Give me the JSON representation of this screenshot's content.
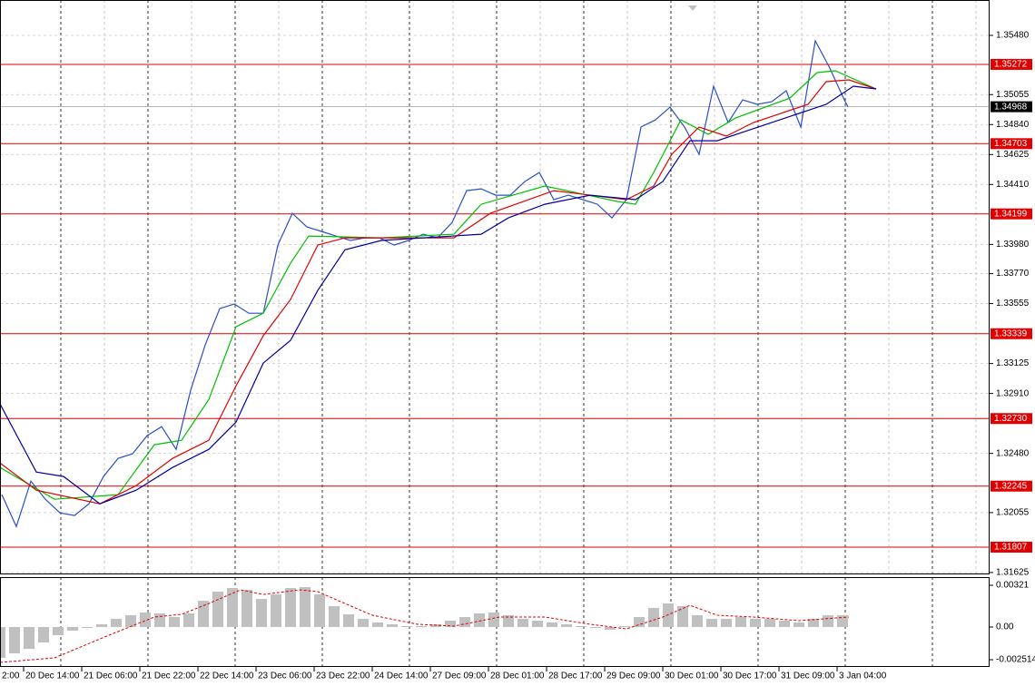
{
  "chart_data": [
    {
      "type": "line",
      "xlim": [
        5.5,
        278
      ],
      "ylim": [
        1.31618,
        1.35734
      ],
      "grid": true,
      "xticks": [
        {
          "value": -4,
          "label": "2:00"
        },
        {
          "value": 12,
          "label": "20 Dec 14:00"
        },
        {
          "value": 28,
          "label": "21 Dec 06:00"
        },
        {
          "value": 44,
          "label": "21 Dec 22:00"
        },
        {
          "value": 60,
          "label": "22 Dec 14:00"
        },
        {
          "value": 76,
          "label": "23 Dec 06:00"
        },
        {
          "value": 92,
          "label": "23 Dec 22:00"
        },
        {
          "value": 108,
          "label": "24 Dec 14:00"
        },
        {
          "value": 124,
          "label": "27 Dec 09:00"
        },
        {
          "value": 140,
          "label": "28 Dec 01:00"
        },
        {
          "value": 156,
          "label": "28 Dec 17:00"
        },
        {
          "value": 172,
          "label": "29 Dec 09:00"
        },
        {
          "value": 188,
          "label": "30 Dec 01:00"
        },
        {
          "value": 204,
          "label": "30 Dec 17:00"
        },
        {
          "value": 220,
          "label": "31 Dec 09:00"
        },
        {
          "value": 236,
          "label": "3 Jan 04:00"
        }
      ],
      "yticks": [
        {
          "value": 1.3548,
          "label": "1.35480"
        },
        {
          "value": 1.35055,
          "label": "1.35055"
        },
        {
          "value": 1.3484,
          "label": "1.34840"
        },
        {
          "value": 1.34625,
          "label": "1.34625"
        },
        {
          "value": 1.3441,
          "label": "1.34410"
        },
        {
          "value": 1.3398,
          "label": "1.33980"
        },
        {
          "value": 1.3377,
          "label": "1.33770"
        },
        1.33555,
        {
          "value": 1.33125,
          "label": "1.33125"
        },
        {
          "value": 1.3291,
          "label": "1.32910"
        },
        {
          "value": 1.3248,
          "label": "1.32480"
        },
        {
          "value": 1.32055,
          "label": "1.32055"
        },
        {
          "value": 1.31625,
          "label": "1.31625"
        }
      ],
      "levels": {
        "color": "#e00000",
        "values": [
          1.35272,
          1.34703,
          1.34199,
          1.33339,
          {
            "value": 1.3273,
            "label": "1.32730"
          },
          1.32245,
          1.31807
        ]
      },
      "current_price": 1.34968,
      "series": [
        {
          "color": "#2a4fc8",
          "x": [
            6,
            10,
            14,
            18,
            22,
            26,
            30,
            34,
            38,
            42,
            46,
            50,
            54,
            58,
            62,
            66,
            70,
            74,
            78,
            82,
            86,
            90,
            94,
            98,
            102,
            106,
            110,
            114,
            118,
            122,
            126,
            130,
            134,
            138,
            142,
            146,
            150,
            154,
            158,
            162,
            166,
            170,
            174,
            178,
            182,
            186,
            190,
            194,
            198,
            202,
            206,
            210,
            214,
            218,
            222,
            226,
            230,
            234,
            238,
            239
          ],
          "values": [
            1.32184,
            1.31955,
            1.32281,
            1.32151,
            1.32053,
            1.32034,
            1.32118,
            1.32314,
            1.32444,
            1.32477,
            1.32607,
            1.32672,
            1.32509,
            1.32933,
            1.33258,
            1.33519,
            1.33552,
            1.33486,
            1.33486,
            1.33975,
            1.34203,
            1.34105,
            1.34073,
            1.3404,
            1.34008,
            1.34027,
            1.34027,
            1.33975,
            1.34008,
            1.34053,
            1.34027,
            1.34138,
            1.34366,
            1.34379,
            1.34333,
            1.34333,
            1.34431,
            1.34496,
            1.34301,
            1.34333,
            1.34301,
            1.34268,
            1.3417,
            1.34301,
            1.34822,
            1.34874,
            1.34965,
            1.34822,
            1.34627,
            1.35115,
            1.34855,
            1.35017,
            1.34985,
            1.35004,
            1.35083,
            1.34822,
            1.35441,
            1.35245,
            1.35017,
            1.34968
          ]
        },
        {
          "color": "#00c000",
          "x": [
            5.5,
            20.5,
            38,
            48,
            55.5,
            63,
            70.5,
            78,
            85.5,
            90.5,
            110.5,
            130.5,
            138,
            155.5,
            175.5,
            180.5,
            185.5,
            193,
            200.5,
            208,
            223,
            230.5,
            235.5,
            246.75
          ],
          "values": [
            1.32379,
            1.32151,
            1.32183,
            1.32542,
            1.32574,
            1.32867,
            1.33389,
            1.33486,
            1.33845,
            1.3404,
            1.34027,
            1.34053,
            1.34268,
            1.34399,
            1.34288,
            1.34268,
            1.34496,
            1.34874,
            1.3477,
            1.34887,
            1.3503,
            1.35213,
            1.35226,
            1.35096
          ]
        },
        {
          "color": "#e00000",
          "x": [
            5.5,
            15.5,
            33,
            43,
            53,
            63,
            70.5,
            78,
            85.5,
            93,
            100.5,
            130.5,
            140.5,
            158,
            178,
            185.5,
            190.5,
            198,
            205.5,
            213,
            228,
            233,
            239.25,
            246.75
          ],
          "values": [
            1.32411,
            1.32216,
            1.32118,
            1.32249,
            1.32444,
            1.32574,
            1.32965,
            1.33324,
            1.33584,
            1.33975,
            1.34027,
            1.34027,
            1.34203,
            1.34366,
            1.34301,
            1.34399,
            1.34627,
            1.34822,
            1.34757,
            1.34855,
            1.34985,
            1.35148,
            1.35161,
            1.35096
          ]
        },
        {
          "color": "#0000a0",
          "x": [
            5.5,
            15.5,
            23,
            33,
            43,
            53,
            63,
            70.5,
            78,
            85.5,
            93,
            100.5,
            110.5,
            138,
            145.5,
            155.5,
            168,
            180.5,
            188,
            195.5,
            203,
            210.5,
            225.5,
            233,
            240.5,
            246.75
          ],
          "values": [
            1.32835,
            1.32346,
            1.32314,
            1.32118,
            1.32216,
            1.32379,
            1.32509,
            1.32705,
            1.33128,
            1.33291,
            1.33649,
            1.33942,
            1.34008,
            1.34053,
            1.3417,
            1.34268,
            1.34333,
            1.34301,
            1.34431,
            1.34724,
            1.34724,
            1.34789,
            1.3492,
            1.34985,
            1.35115,
            1.35096
          ]
        }
      ]
    },
    {
      "type": "histogram",
      "xlim": [
        5.5,
        278
      ],
      "ylim": [
        -0.00307,
        0.00384
      ],
      "yticks": [
        0.00321,
        {
          "value": 0,
          "label": "0.00"
        },
        -0.002514
      ],
      "series": [
        {
          "color": "#c0c0c0",
          "x": [
            5.5,
            9.5,
            13.5,
            17.5,
            21.5,
            25.5,
            29.5,
            33.5,
            37.5,
            41.5,
            45.5,
            49.5,
            53.5,
            57.5,
            61.5,
            65.5,
            69.5,
            73.5,
            77.5,
            81.5,
            85.5,
            89.5,
            93.5,
            97.5,
            101.5,
            105.5,
            109.5,
            113.5,
            117.5,
            121.5,
            125.5,
            129.5,
            133.5,
            137.5,
            141.5,
            145.5,
            149.5,
            153.5,
            157.5,
            161.5,
            165.5,
            169.5,
            173.5,
            177.5,
            181.5,
            185.5,
            189.5,
            193.5,
            197.5,
            201.5,
            205.5,
            209.5,
            213.5,
            217.5,
            221.5,
            225.5,
            229.5,
            233.5,
            237.5
          ],
          "values": [
            -0.00237,
            -0.00202,
            -0.00168,
            -0.00119,
            -0.00063,
            -0.00028,
            -7e-05,
            0.00021,
            0.00063,
            0.00091,
            0.00112,
            0.00105,
            0.00077,
            0.00105,
            0.00202,
            0.00272,
            0.003,
            0.00286,
            0.00216,
            0.00251,
            0.003,
            0.00307,
            0.00251,
            0.00161,
            0.00098,
            0.00063,
            0.00035,
            0.00021,
            7e-05,
            7e-05,
            0.00021,
            0.00049,
            0.00077,
            0.00105,
            0.00112,
            0.00091,
            0.00063,
            0.00049,
            0.00035,
            0.00021,
            7e-05,
            -7e-05,
            -0.00021,
            7e-05,
            0.00077,
            0.00147,
            0.00181,
            0.00161,
            0.00091,
            0.00063,
            0.00063,
            0.00077,
            0.00063,
            0.00063,
            0.00049,
            0.00035,
            0.00063,
            0.00091,
            0.00091
          ]
        },
        {
          "color": "#e00000",
          "x": [
            5.5,
            20.5,
            35.5,
            48,
            55.5,
            63,
            71.75,
            78,
            88,
            93,
            100.5,
            108,
            120.5,
            130.5,
            143,
            155.5,
            168,
            178,
            188,
            195.5,
            203,
            213,
            225.5,
            239.25
          ],
          "values": [
            -0.00272,
            -0.00237,
            -0.00063,
            0.00077,
            0.00098,
            0.00181,
            0.00286,
            0.00251,
            0.00286,
            0.00272,
            0.00181,
            0.00091,
            0.00021,
            7e-05,
            0.00077,
            0.00077,
            0.00021,
            -0.00014,
            0.00077,
            0.00167,
            0.00091,
            0.00077,
            0.00049,
            0.00077
          ]
        }
      ]
    }
  ]
}
